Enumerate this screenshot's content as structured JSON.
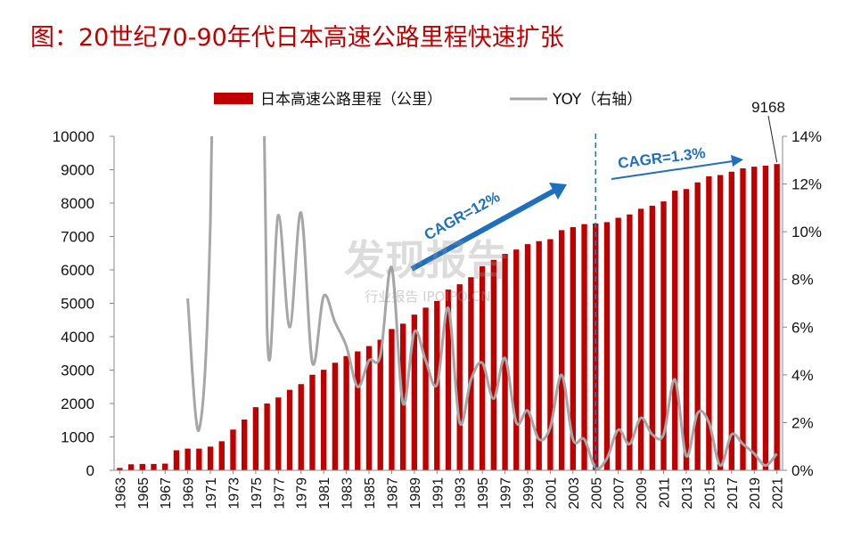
{
  "title": "图：20世纪70-90年代日本高速公路里程快速扩张",
  "colors": {
    "bar": "#c00000",
    "line": "#a6a6a6",
    "arrow": "#1f6fbf",
    "divider": "#2e75b6",
    "title": "#c00000"
  },
  "watermark": {
    "main": "发现报告",
    "sub": "行业报告 IPOIPO.CN"
  },
  "chart_data": {
    "type": "bar+line",
    "legend": {
      "bar_label": "日本高速公路里程（公里）",
      "line_label": "YOY（右轴）",
      "placement": "top"
    },
    "left_axis": {
      "min": 0,
      "max": 10000,
      "ticks": [
        "0",
        "1000",
        "2000",
        "3000",
        "4000",
        "5000",
        "6000",
        "7000",
        "8000",
        "9000",
        "10000"
      ]
    },
    "right_axis": {
      "min": 0,
      "max": 0.14,
      "ticks": [
        "0%",
        "2%",
        "4%",
        "6%",
        "8%",
        "10%",
        "12%",
        "14%"
      ]
    },
    "x_tick_labels": [
      "1963",
      "1965",
      "1967",
      "1969",
      "1971",
      "1973",
      "1975",
      "1977",
      "1979",
      "1981",
      "1983",
      "1985",
      "1987",
      "1989",
      "1991",
      "1993",
      "1995",
      "1997",
      "1999",
      "2001",
      "2003",
      "2005",
      "2007",
      "2009",
      "2011",
      "2013",
      "2015",
      "2017",
      "2019",
      "2021"
    ],
    "years": [
      1963,
      1964,
      1965,
      1966,
      1967,
      1968,
      1969,
      1970,
      1971,
      1972,
      1973,
      1974,
      1975,
      1976,
      1977,
      1978,
      1979,
      1980,
      1981,
      1982,
      1983,
      1984,
      1985,
      1986,
      1987,
      1988,
      1989,
      1990,
      1991,
      1992,
      1993,
      1994,
      1995,
      1996,
      1997,
      1998,
      1999,
      2000,
      2001,
      2002,
      2003,
      2004,
      2005,
      2006,
      2007,
      2008,
      2009,
      2010,
      2011,
      2012,
      2013,
      2014,
      2015,
      2016,
      2017,
      2018,
      2019,
      2020,
      2021
    ],
    "km": [
      71,
      180,
      190,
      190,
      200,
      600,
      650,
      650,
      710,
      870,
      1220,
      1520,
      1890,
      2000,
      2180,
      2410,
      2580,
      2860,
      3010,
      3220,
      3420,
      3560,
      3720,
      3910,
      4230,
      4390,
      4660,
      4870,
      5070,
      5410,
      5570,
      5780,
      6110,
      6300,
      6480,
      6610,
      6770,
      6860,
      6920,
      7190,
      7280,
      7370,
      7390,
      7430,
      7560,
      7660,
      7830,
      7920,
      8050,
      8370,
      8420,
      8620,
      8800,
      8840,
      8940,
      9040,
      9090,
      9120,
      9168
    ],
    "yoy": [
      null,
      null,
      null,
      null,
      null,
      null,
      0.072,
      0.017,
      0.105,
      0.4,
      0.4,
      0.4,
      0.4,
      0.06,
      0.107,
      0.06,
      0.108,
      0.045,
      0.073,
      0.062,
      0.052,
      0.035,
      0.046,
      0.048,
      0.085,
      0.028,
      0.058,
      0.046,
      0.036,
      0.068,
      0.02,
      0.038,
      0.045,
      0.03,
      0.047,
      0.02,
      0.025,
      0.013,
      0.018,
      0.04,
      0.013,
      0.013,
      0.001,
      0.005,
      0.017,
      0.011,
      0.022,
      0.015,
      0.015,
      0.038,
      0.006,
      0.024,
      0.02,
      0.002,
      0.015,
      0.011,
      0.007,
      0.002,
      0.007
    ],
    "annotations": {
      "cagr1": "CAGR=12%",
      "cagr2": "CAGR=1.3%",
      "last_value": "9168",
      "divider_year": 2005
    }
  }
}
